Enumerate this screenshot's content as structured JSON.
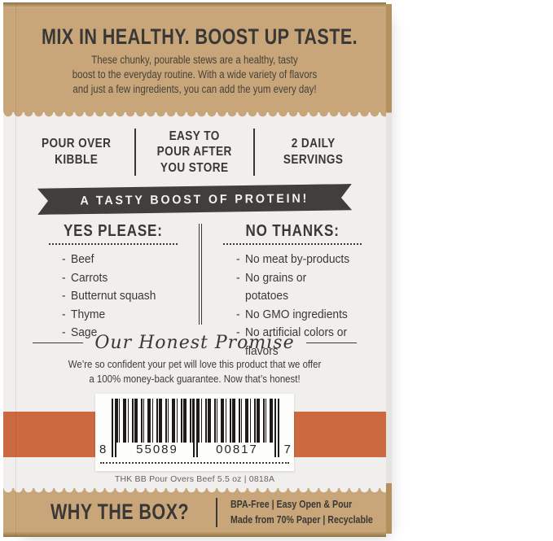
{
  "colors": {
    "kraft": "#c8a67a",
    "kraft_dark": "#8f7347",
    "charcoal": "#3a3836",
    "orange": "#cc6941",
    "panel_white": "#f0efed"
  },
  "top_section": {
    "headline": "MIX IN HEALTHY. BOOST UP TASTE.",
    "body_lines": [
      "These chunky, pourable stews are a healthy, tasty",
      "boost to the everyday routine. With a wide variety of flavors",
      "and just a few ingredients, you can add the yum every day!"
    ]
  },
  "benefits": {
    "items": [
      {
        "lines": [
          "POUR OVER",
          "KIBBLE"
        ]
      },
      {
        "lines": [
          "EASY TO",
          "POUR AFTER",
          "YOU STORE"
        ]
      },
      {
        "lines": [
          "2 DAILY",
          "SERVINGS"
        ]
      }
    ]
  },
  "ribbon": {
    "label": "A TASTY BOOST OF PROTEIN!"
  },
  "lists": {
    "bullet": "-",
    "yes": {
      "heading": "YES PLEASE:",
      "items": [
        "Beef",
        "Carrots",
        "Butternut squash",
        "Thyme",
        "Sage"
      ]
    },
    "no": {
      "heading": "NO THANKS:",
      "items": [
        "No meat by-products",
        "No grains or potatoes",
        "No GMO ingredients",
        "No artificial colors or flavors"
      ]
    }
  },
  "promise": {
    "heading": "Our Honest Promise",
    "body_lines": [
      "We’re so confident your pet will love this product that we offer",
      "a 100% money-back guarantee. Now that’s honest!"
    ]
  },
  "barcode": {
    "digit_left": "8",
    "digit_group1": "55089",
    "digit_group2": "00817",
    "digit_right": "7",
    "caption": "THK BB Pour Overs Beef 5.5 oz | 0818A"
  },
  "bottom_section": {
    "headline": "WHY THE BOX?",
    "info_lines": [
      "BPA-Free | Easy Open & Pour",
      "Made from 70% Paper | Recyclable"
    ]
  }
}
